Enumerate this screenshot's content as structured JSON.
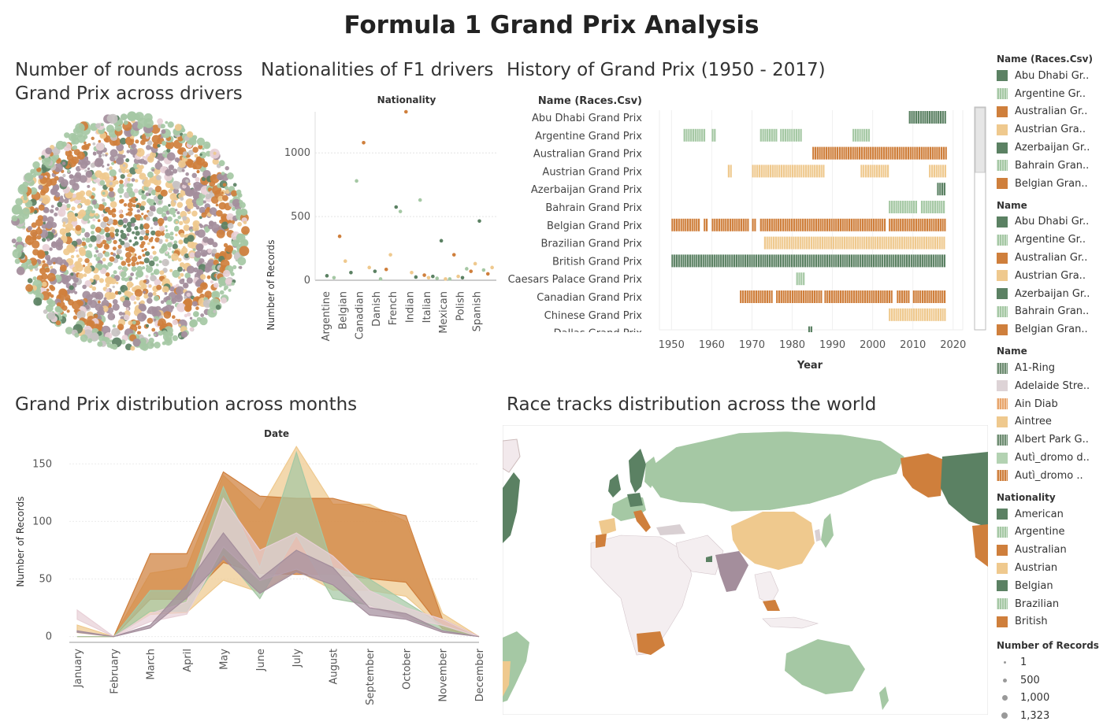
{
  "dashboard": {
    "title": "Formula 1 Grand Prix Analysis",
    "sheets": {
      "rounds": "Number of rounds across Grand Prix across drivers",
      "nationalities": "Nationalities of F1 drivers",
      "history": "History of Grand Prix  (1950 - 2017)",
      "months": "Grand Prix distribution across months",
      "map": "Race tracks distribution across the world"
    }
  },
  "colors": {
    "dark_green": "#5b8163",
    "light_green": "#a5c8a4",
    "orange": "#cf7f3c",
    "light_orange": "#efc98e",
    "mauve": "#a48e9c",
    "pink": "#e8d0d7",
    "grey": "#c8c2c2"
  },
  "legends": [
    {
      "title": "Name (Races.Csv)",
      "items": [
        {
          "label": "Abu Dhabi Gr..",
          "color": "#5b8163",
          "hatch": false
        },
        {
          "label": "Argentine Gr..",
          "color": "#a5c8a4",
          "hatch": true
        },
        {
          "label": "Australian Gr..",
          "color": "#cf7f3c",
          "hatch": false
        },
        {
          "label": "Austrian Gra..",
          "color": "#efc98e",
          "hatch": false
        },
        {
          "label": "Azerbaijan Gr..",
          "color": "#5b8163",
          "hatch": false
        },
        {
          "label": "Bahrain Gran..",
          "color": "#a5c8a4",
          "hatch": true
        },
        {
          "label": "Belgian Gran..",
          "color": "#cf7f3c",
          "hatch": false
        }
      ]
    },
    {
      "title": "Name",
      "items": [
        {
          "label": "Abu Dhabi Gr..",
          "color": "#5b8163",
          "hatch": false
        },
        {
          "label": "Argentine Gr..",
          "color": "#a5c8a4",
          "hatch": true
        },
        {
          "label": "Australian Gr..",
          "color": "#cf7f3c",
          "hatch": false
        },
        {
          "label": "Austrian Gra..",
          "color": "#efc98e",
          "hatch": false
        },
        {
          "label": "Azerbaijan Gr..",
          "color": "#5b8163",
          "hatch": false
        },
        {
          "label": "Bahrain Gran..",
          "color": "#a5c8a4",
          "hatch": true
        },
        {
          "label": "Belgian Gran..",
          "color": "#cf7f3c",
          "hatch": false
        }
      ]
    },
    {
      "title": "Name",
      "items": [
        {
          "label": "A1-Ring",
          "color": "#6e8d72",
          "hatch": true
        },
        {
          "label": "Adelaide Stre..",
          "color": "#ddd3d6",
          "hatch": false
        },
        {
          "label": "Ain Diab",
          "color": "#e8a56b",
          "hatch": true
        },
        {
          "label": "Aintree",
          "color": "#efc98e",
          "hatch": false
        },
        {
          "label": "Albert Park G..",
          "color": "#6e8d72",
          "hatch": true
        },
        {
          "label": "Autì_dromo d..",
          "color": "#b3d2b2",
          "hatch": false
        },
        {
          "label": "Autì_dromo ..",
          "color": "#cf7f3c",
          "hatch": true
        }
      ]
    },
    {
      "title": "Nationality",
      "items": [
        {
          "label": "American",
          "color": "#5b8163",
          "hatch": false
        },
        {
          "label": "Argentine",
          "color": "#a5c8a4",
          "hatch": true
        },
        {
          "label": "Australian",
          "color": "#cf7f3c",
          "hatch": false
        },
        {
          "label": "Austrian",
          "color": "#efc98e",
          "hatch": false
        },
        {
          "label": "Belgian",
          "color": "#5b8163",
          "hatch": false
        },
        {
          "label": "Brazilian",
          "color": "#a5c8a4",
          "hatch": true
        },
        {
          "label": "British",
          "color": "#cf7f3c",
          "hatch": false
        }
      ]
    }
  ],
  "size_legend": {
    "title": "Number of Records",
    "items": [
      "1",
      "500",
      "1,000",
      "1,323"
    ]
  },
  "chart_data": [
    {
      "type": "scatter",
      "id": "nationalities",
      "title": "Nationality",
      "ylabel": "Number of Records",
      "ylim": [
        0,
        1323
      ],
      "yticks": [
        0,
        500,
        1000
      ],
      "categories": [
        "Argentine",
        "Belgian",
        "Canadian",
        "Danish",
        "French",
        "Indian",
        "Italian",
        "Mexican",
        "Polish",
        "Spanish"
      ],
      "points": [
        {
          "x": 0.5,
          "y": 35,
          "color": "#5b8163"
        },
        {
          "x": 1.0,
          "y": 20,
          "color": "#a5c8a4"
        },
        {
          "x": 1.4,
          "y": 345,
          "color": "#cf7f3c"
        },
        {
          "x": 1.8,
          "y": 150,
          "color": "#efc98e"
        },
        {
          "x": 2.2,
          "y": 60,
          "color": "#5b8163"
        },
        {
          "x": 2.6,
          "y": 780,
          "color": "#a5c8a4"
        },
        {
          "x": 3.1,
          "y": 1080,
          "color": "#cf7f3c"
        },
        {
          "x": 3.5,
          "y": 100,
          "color": "#efc98e"
        },
        {
          "x": 3.9,
          "y": 70,
          "color": "#5b8163"
        },
        {
          "x": 4.3,
          "y": 10,
          "color": "#a5c8a4"
        },
        {
          "x": 4.7,
          "y": 85,
          "color": "#cf7f3c"
        },
        {
          "x": 5.0,
          "y": 200,
          "color": "#efc98e"
        },
        {
          "x": 5.4,
          "y": 575,
          "color": "#5b8163"
        },
        {
          "x": 5.7,
          "y": 540,
          "color": "#a5c8a4"
        },
        {
          "x": 6.1,
          "y": 1323,
          "color": "#cf7f3c"
        },
        {
          "x": 6.5,
          "y": 60,
          "color": "#efc98e"
        },
        {
          "x": 6.8,
          "y": 25,
          "color": "#5b8163"
        },
        {
          "x": 7.1,
          "y": 630,
          "color": "#a5c8a4"
        },
        {
          "x": 7.4,
          "y": 40,
          "color": "#cf7f3c"
        },
        {
          "x": 7.7,
          "y": 20,
          "color": "#efc98e"
        },
        {
          "x": 8.0,
          "y": 30,
          "color": "#5b8163"
        },
        {
          "x": 8.3,
          "y": 15,
          "color": "#a5c8a4"
        },
        {
          "x": 8.6,
          "y": 310,
          "color": "#5b8163"
        },
        {
          "x": 8.9,
          "y": 10,
          "color": "#efc98e"
        },
        {
          "x": 9.2,
          "y": 10,
          "color": "#a5c8a4"
        },
        {
          "x": 9.5,
          "y": 200,
          "color": "#cf7f3c"
        },
        {
          "x": 9.8,
          "y": 30,
          "color": "#efc98e"
        },
        {
          "x": 10.1,
          "y": 20,
          "color": "#5b8163"
        },
        {
          "x": 10.4,
          "y": 90,
          "color": "#a5c8a4"
        },
        {
          "x": 10.7,
          "y": 70,
          "color": "#cf7f3c"
        },
        {
          "x": 11.0,
          "y": 130,
          "color": "#efc98e"
        },
        {
          "x": 11.3,
          "y": 465,
          "color": "#5b8163"
        },
        {
          "x": 11.6,
          "y": 80,
          "color": "#a5c8a4"
        },
        {
          "x": 11.9,
          "y": 50,
          "color": "#cf7f3c"
        },
        {
          "x": 12.2,
          "y": 100,
          "color": "#efc98e"
        }
      ]
    },
    {
      "type": "gantt",
      "id": "history",
      "row_header": "Name (Races.Csv)",
      "xlabel": "Year",
      "xlim": [
        1947,
        2022
      ],
      "xticks": [
        1950,
        1960,
        1970,
        1980,
        1990,
        2000,
        2010,
        2020
      ],
      "rows": [
        {
          "name": "Abu Dhabi Grand Prix",
          "color": "#5b8163",
          "spans": [
            [
              2009,
              2018
            ]
          ]
        },
        {
          "name": "Argentine Grand Prix",
          "color": "#a5c8a4",
          "spans": [
            [
              1953,
              1958
            ],
            [
              1960,
              1961
            ],
            [
              1972,
              1976
            ],
            [
              1977,
              1982
            ],
            [
              1995,
              1999
            ]
          ]
        },
        {
          "name": "Australian Grand Prix",
          "color": "#cf7f3c",
          "spans": [
            [
              1985,
              2018
            ]
          ]
        },
        {
          "name": "Austrian Grand Prix",
          "color": "#efc98e",
          "spans": [
            [
              1964,
              1965
            ],
            [
              1970,
              1988
            ],
            [
              1997,
              2004
            ],
            [
              2014,
              2018
            ]
          ]
        },
        {
          "name": "Azerbaijan Grand Prix",
          "color": "#5b8163",
          "spans": [
            [
              2016,
              2018
            ]
          ]
        },
        {
          "name": "Bahrain Grand Prix",
          "color": "#a5c8a4",
          "spans": [
            [
              2004,
              2011
            ],
            [
              2012,
              2018
            ]
          ]
        },
        {
          "name": "Belgian Grand Prix",
          "color": "#cf7f3c",
          "spans": [
            [
              1950,
              1957
            ],
            [
              1958,
              1959
            ],
            [
              1960,
              1969
            ],
            [
              1970,
              1971
            ],
            [
              1972,
              2003
            ],
            [
              2004,
              2018
            ]
          ]
        },
        {
          "name": "Brazilian Grand Prix",
          "color": "#efc98e",
          "spans": [
            [
              1973,
              2018
            ]
          ]
        },
        {
          "name": "British Grand Prix",
          "color": "#5b8163",
          "spans": [
            [
              1950,
              2018
            ]
          ]
        },
        {
          "name": "Caesars Palace Grand Prix",
          "color": "#a5c8a4",
          "spans": [
            [
              1981,
              1983
            ]
          ]
        },
        {
          "name": "Canadian Grand Prix",
          "color": "#cf7f3c",
          "spans": [
            [
              1967,
              1975
            ],
            [
              1976,
              1987
            ],
            [
              1988,
              2005
            ],
            [
              2006,
              2009
            ],
            [
              2010,
              2018
            ]
          ]
        },
        {
          "name": "Chinese Grand Prix",
          "color": "#efc98e",
          "spans": [
            [
              2004,
              2018
            ]
          ]
        },
        {
          "name": "Dallas Grand Prix",
          "color": "#5b8163",
          "spans": [
            [
              1984,
              1985
            ]
          ]
        }
      ]
    },
    {
      "type": "area",
      "id": "months",
      "title": "Date",
      "ylabel": "Number of Records",
      "ylim": [
        -5,
        170
      ],
      "yticks": [
        0,
        50,
        100,
        150
      ],
      "categories": [
        "January",
        "February",
        "March",
        "April",
        "May",
        "June",
        "July",
        "August",
        "September",
        "October",
        "November",
        "December"
      ],
      "series": [
        {
          "color": "#efc98e",
          "values": [
            10,
            0,
            55,
            60,
            140,
            110,
            165,
            115,
            115,
            100,
            20,
            0
          ]
        },
        {
          "color": "#cf7f3c",
          "values": [
            0,
            0,
            72,
            72,
            143,
            122,
            120,
            120,
            112,
            105,
            15,
            0
          ]
        },
        {
          "color": "#a5c8a4",
          "values": [
            0,
            0,
            40,
            40,
            130,
            60,
            160,
            60,
            50,
            30,
            10,
            0
          ]
        },
        {
          "color": "#e8d0d7",
          "values": [
            23,
            0,
            20,
            30,
            120,
            75,
            90,
            70,
            40,
            25,
            15,
            0
          ]
        },
        {
          "color": "#a48e9c",
          "values": [
            5,
            0,
            10,
            45,
            90,
            50,
            75,
            60,
            25,
            20,
            5,
            0
          ]
        }
      ]
    }
  ]
}
